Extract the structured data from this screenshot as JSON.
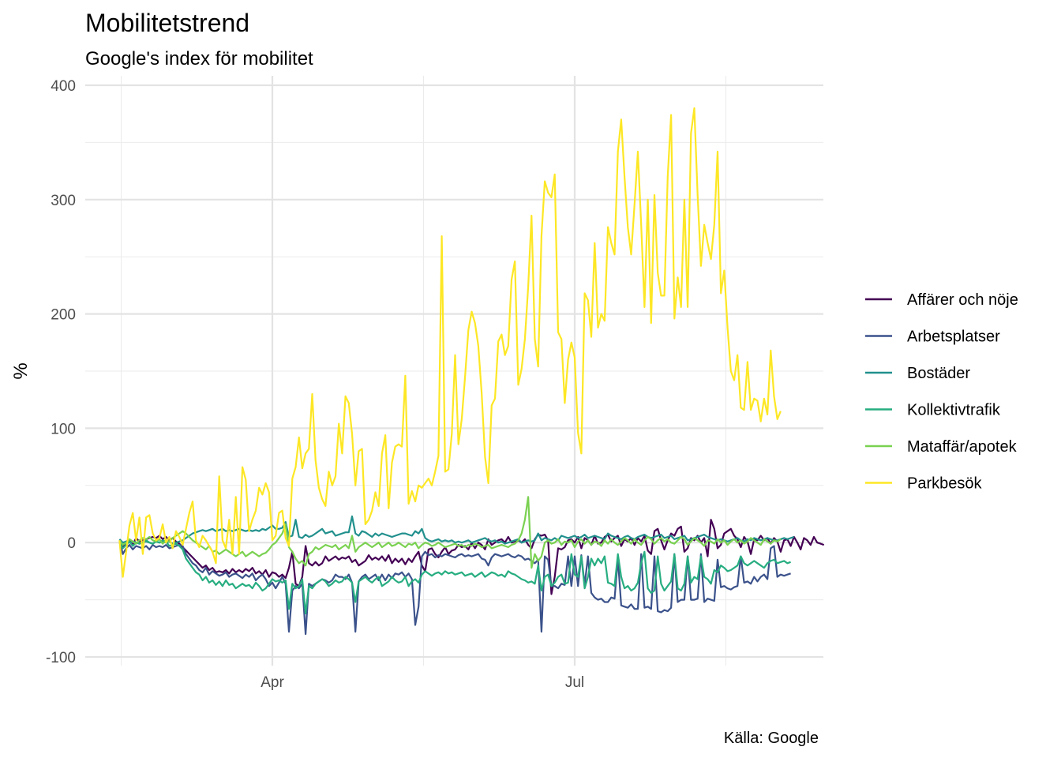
{
  "chart_data": {
    "type": "line",
    "title": "Mobilitetstrend",
    "subtitle": "Google's index för mobilitet",
    "xlabel": "",
    "ylabel": "%",
    "caption": "Källa: Google",
    "x_start": "2020-02-15",
    "x_ticks": [
      {
        "date": "2020-04-01",
        "label": "Apr"
      },
      {
        "date": "2020-07-01",
        "label": "Jul"
      }
    ],
    "y_ticks": [
      -100,
      0,
      100,
      200,
      300,
      400
    ],
    "ylim": [
      -100,
      400
    ],
    "grid": true,
    "legend_position": "right",
    "series": [
      {
        "name": "Affärer och nöje",
        "color": "#440154",
        "values": [
          0,
          -4,
          1,
          2,
          -2,
          4,
          1,
          2,
          3,
          4,
          5,
          4,
          6,
          3,
          5,
          2,
          4,
          1,
          -1,
          -4,
          -7,
          -10,
          -13,
          -16,
          -19,
          -22,
          -20,
          -24,
          -22,
          -26,
          -25,
          -26,
          -24,
          -27,
          -23,
          -26,
          -24,
          -26,
          -23,
          -25,
          -22,
          -27,
          -25,
          -28,
          -24,
          -30,
          -26,
          -27,
          -30,
          -28,
          -31,
          -22,
          -8,
          -36,
          -38,
          -30,
          -3,
          -18,
          -20,
          -17,
          -20,
          -18,
          -12,
          -16,
          -14,
          -12,
          -15,
          -13,
          -14,
          -12,
          -17,
          -15,
          -20,
          -18,
          -16,
          -11,
          -15,
          -13,
          -15,
          -12,
          -16,
          -11,
          -18,
          -14,
          -17,
          -14,
          -19,
          -14,
          -17,
          -12,
          -8,
          -20,
          -25,
          -6,
          -5,
          -10,
          -13,
          -8,
          -4,
          -10,
          -7,
          -6,
          -2,
          -4,
          -3,
          -6,
          0,
          -5,
          0,
          -2,
          -6,
          3,
          -2,
          0,
          2,
          3,
          0,
          5,
          0,
          1,
          2,
          0,
          3,
          -2,
          -5,
          3,
          7,
          6,
          7,
          2,
          -45,
          -30,
          -5,
          -6,
          -4,
          2,
          3,
          0,
          5,
          -5,
          4,
          2,
          -2,
          6,
          -1,
          0,
          5,
          7,
          1,
          4,
          6,
          -3,
          3,
          1,
          4,
          -2,
          4,
          1,
          6,
          -7,
          -10,
          10,
          12,
          2,
          -6,
          2,
          8,
          6,
          12,
          14,
          -8,
          -5,
          4,
          2,
          6,
          0,
          4,
          -12,
          20,
          12,
          -5,
          -2,
          8,
          10,
          12,
          6,
          3,
          -4,
          5,
          1,
          -10,
          3,
          2,
          6,
          2,
          4,
          -1,
          4,
          1,
          -8,
          2,
          3,
          -3,
          5,
          0,
          -6,
          4,
          2,
          -2,
          5,
          0,
          -1,
          -2
        ]
      },
      {
        "name": "Arbetsplatser",
        "color": "#3b528b",
        "values": [
          2,
          -10,
          -5,
          -2,
          -6,
          -3,
          -4,
          -5,
          -3,
          -6,
          -2,
          -4,
          -3,
          -4,
          -2,
          -5,
          -4,
          -3,
          -2,
          -3,
          -10,
          -14,
          -18,
          -20,
          -24,
          -26,
          -22,
          -28,
          -25,
          -27,
          -29,
          -28,
          -26,
          -30,
          -28,
          -27,
          -29,
          -31,
          -28,
          -30,
          -27,
          -33,
          -30,
          -28,
          -32,
          -38,
          -35,
          -40,
          -35,
          -30,
          -36,
          -78,
          -42,
          -38,
          -40,
          -36,
          -80,
          -36,
          -38,
          -36,
          -34,
          -32,
          -33,
          -35,
          -33,
          -28,
          -30,
          -30,
          -32,
          -28,
          -35,
          -78,
          -34,
          -30,
          -28,
          -32,
          -30,
          -28,
          -33,
          -28,
          -33,
          -28,
          -31,
          -27,
          -28,
          -26,
          -30,
          -27,
          -32,
          -72,
          -56,
          -12,
          -8,
          -11,
          -10,
          -13,
          -11,
          -12,
          -10,
          -11,
          -12,
          -13,
          -11,
          -10,
          -12,
          -11,
          -12,
          -11,
          -10,
          -14,
          -15,
          -20,
          -13,
          -10,
          -11,
          -12,
          -11,
          -10,
          -12,
          -13,
          -11,
          -12,
          -15,
          -14,
          -16,
          -18,
          -15,
          -78,
          -12,
          -15,
          -38,
          -38,
          -40,
          -36,
          -37,
          -12,
          -38,
          -12,
          -38,
          -11,
          -37,
          -12,
          -44,
          -48,
          -50,
          -49,
          -52,
          -52,
          -48,
          -49,
          -14,
          -55,
          -56,
          -57,
          -54,
          -58,
          -58,
          -10,
          -57,
          -56,
          -58,
          -12,
          -60,
          -61,
          -59,
          -60,
          -57,
          -10,
          -52,
          -50,
          -50,
          -12,
          -50,
          -50,
          -49,
          -10,
          -52,
          -49,
          -50,
          -51,
          -15,
          -39,
          -38,
          -40,
          -41,
          -39,
          -38,
          -12,
          -35,
          -34,
          -36,
          -30,
          -34,
          -30,
          -28,
          -32,
          -5,
          -3,
          -30,
          -28,
          -29,
          -28,
          -27
        ]
      },
      {
        "name": "Bostäder",
        "color": "#21908d",
        "values": [
          3,
          0,
          1,
          0,
          1,
          0,
          -1,
          0,
          1,
          0,
          -1,
          1,
          0,
          1,
          0,
          1,
          -1,
          0,
          1,
          2,
          4,
          6,
          8,
          9,
          10,
          11,
          10,
          11,
          12,
          10,
          11,
          12,
          10,
          11,
          10,
          11,
          12,
          11,
          10,
          11,
          10,
          11,
          10,
          12,
          11,
          13,
          15,
          12,
          12,
          13,
          18,
          5,
          6,
          20,
          5,
          4,
          7,
          5,
          6,
          8,
          10,
          12,
          8,
          9,
          10,
          6,
          7,
          8,
          9,
          9,
          23,
          8,
          6,
          10,
          9,
          7,
          5,
          8,
          6,
          8,
          7,
          6,
          5,
          6,
          7,
          8,
          8,
          7,
          6,
          10,
          8,
          12,
          4,
          2,
          1,
          2,
          3,
          1,
          2,
          1,
          2,
          0,
          1,
          0,
          1,
          2,
          0,
          1,
          2,
          3,
          4,
          2,
          1,
          2,
          0,
          1,
          -1,
          0,
          1,
          2,
          3,
          0,
          1,
          2,
          1,
          2,
          8,
          2,
          4,
          3,
          2,
          4,
          2,
          6,
          5,
          4,
          5,
          6,
          4,
          5,
          7,
          4,
          5,
          6,
          5,
          4,
          3,
          8,
          6,
          5,
          4,
          3,
          5,
          6,
          4,
          3,
          5,
          6,
          7,
          5,
          4,
          5,
          6,
          7,
          4,
          5,
          6,
          3,
          4,
          5,
          6,
          2,
          3,
          4,
          5,
          6,
          7,
          5,
          4,
          3,
          2,
          3,
          2,
          1,
          2,
          3,
          4,
          2,
          1,
          3,
          2,
          4,
          3,
          2,
          3,
          4,
          3,
          2,
          2,
          3,
          4,
          3,
          4,
          5
        ]
      },
      {
        "name": "Kollektivtrafik",
        "color": "#27ad81",
        "values": [
          0,
          -5,
          -2,
          1,
          -3,
          0,
          -1,
          0,
          2,
          0,
          -1,
          1,
          0,
          2,
          1,
          -3,
          -2,
          -1,
          -3,
          -6,
          -14,
          -18,
          -22,
          -26,
          -28,
          -33,
          -30,
          -35,
          -33,
          -37,
          -34,
          -38,
          -33,
          -37,
          -36,
          -40,
          -38,
          -36,
          -38,
          -37,
          -40,
          -35,
          -38,
          -42,
          -40,
          -36,
          -32,
          -34,
          -33,
          -35,
          -33,
          -58,
          -36,
          -40,
          -38,
          -32,
          -62,
          -38,
          -40,
          -36,
          -34,
          -32,
          -34,
          -38,
          -36,
          -33,
          -35,
          -34,
          -30,
          -32,
          -35,
          -52,
          -34,
          -32,
          -30,
          -33,
          -35,
          -32,
          -30,
          -38,
          -36,
          -34,
          -30,
          -33,
          -35,
          -34,
          -30,
          -38,
          -34,
          -32,
          -35,
          -28,
          -25,
          -27,
          -29,
          -27,
          -26,
          -28,
          -25,
          -27,
          -26,
          -28,
          -27,
          -26,
          -29,
          -28,
          -27,
          -30,
          -28,
          -26,
          -30,
          -28,
          -26,
          -27,
          -29,
          -28,
          -30,
          -25,
          -27,
          -28,
          -30,
          -32,
          -33,
          -35,
          -34,
          -36,
          -20,
          -42,
          -30,
          -28,
          -38,
          -35,
          -30,
          -28,
          -36,
          -35,
          -10,
          -28,
          -30,
          -12,
          -40,
          -30,
          -14,
          -20,
          -14,
          -18,
          -12,
          -35,
          -36,
          -38,
          -10,
          -30,
          -40,
          -38,
          -42,
          -40,
          -35,
          -18,
          -8,
          -40,
          -44,
          -42,
          -12,
          -36,
          -42,
          -38,
          -34,
          -10,
          -40,
          -42,
          -36,
          -12,
          -35,
          -30,
          -32,
          -12,
          -30,
          -32,
          -36,
          -24,
          -26,
          -20,
          -22,
          -25,
          -24,
          -22,
          -20,
          -12,
          -18,
          -20,
          -18,
          -16,
          -18,
          -20,
          -22,
          -18,
          -16,
          -15,
          -18,
          -17,
          -16,
          -18,
          -17
        ]
      },
      {
        "name": "Mataffär/apotek",
        "color": "#7ad151",
        "values": [
          2,
          -2,
          0,
          3,
          1,
          -1,
          2,
          4,
          3,
          5,
          2,
          1,
          3,
          -1,
          2,
          1,
          4,
          6,
          8,
          10,
          8,
          5,
          2,
          0,
          -2,
          -4,
          -6,
          -3,
          -8,
          -7,
          -10,
          -8,
          -6,
          -8,
          -10,
          -12,
          -10,
          -8,
          -12,
          -10,
          -8,
          -10,
          -12,
          -10,
          -9,
          -6,
          -2,
          0,
          4,
          8,
          16,
          -4,
          -8,
          -14,
          -18,
          -16,
          -20,
          -10,
          -8,
          -4,
          -6,
          -4,
          -2,
          -3,
          -4,
          -2,
          -6,
          -4,
          -2,
          -5,
          6,
          -8,
          -4,
          -2,
          0,
          -2,
          -4,
          -2,
          0,
          -4,
          -2,
          0,
          -3,
          -2,
          0,
          -2,
          -4,
          -1,
          -2,
          0,
          -5,
          -2,
          0,
          -1,
          -3,
          -2,
          0,
          -2,
          -4,
          -3,
          -2,
          -1,
          -3,
          -2,
          -4,
          -2,
          -3,
          -1,
          -2,
          -4,
          -3,
          -2,
          -5,
          -4,
          -3,
          -2,
          -3,
          -4,
          -2,
          -1,
          2,
          8,
          20,
          40,
          -22,
          -10,
          -16,
          -12,
          0,
          2,
          -1,
          0,
          3,
          -2,
          1,
          0,
          2,
          -4,
          1,
          3,
          -1,
          2,
          -2,
          1,
          0,
          -3,
          2,
          -1,
          3,
          0,
          -2,
          1,
          4,
          2,
          -1,
          3,
          0,
          -2,
          2,
          5,
          3,
          -1,
          2,
          4,
          1,
          3,
          0,
          -1,
          2,
          5,
          3,
          -2,
          1,
          4,
          2,
          0,
          -3,
          2,
          1,
          -1,
          3,
          0,
          2,
          -2,
          1,
          3,
          0,
          2,
          -1,
          1,
          4,
          2,
          0,
          -2,
          3,
          1,
          -1,
          2,
          1,
          3
        ]
      },
      {
        "name": "Parkbesök",
        "color": "#fde725",
        "values": [
          2,
          -30,
          -8,
          15,
          26,
          2,
          22,
          -10,
          22,
          24,
          8,
          2,
          4,
          16,
          0,
          5,
          -5,
          10,
          5,
          -2,
          12,
          26,
          36,
          2,
          -4,
          6,
          2,
          -3,
          -8,
          -18,
          58,
          2,
          -5,
          20,
          -10,
          40,
          -10,
          66,
          55,
          10,
          20,
          28,
          48,
          42,
          52,
          44,
          2,
          6,
          26,
          28,
          4,
          -3,
          56,
          66,
          92,
          65,
          78,
          82,
          130,
          72,
          48,
          38,
          32,
          62,
          50,
          58,
          104,
          78,
          128,
          122,
          95,
          50,
          80,
          82,
          16,
          20,
          28,
          44,
          32,
          78,
          94,
          30,
          70,
          84,
          86,
          84,
          146,
          34,
          45,
          36,
          50,
          48,
          52,
          56,
          50,
          62,
          76,
          268,
          62,
          64,
          95,
          164,
          86,
          108,
          145,
          186,
          202,
          192,
          172,
          130,
          75,
          52,
          120,
          126,
          176,
          182,
          164,
          172,
          230,
          246,
          138,
          152,
          178,
          224,
          286,
          178,
          154,
          268,
          316,
          306,
          302,
          322,
          184,
          178,
          122,
          160,
          175,
          162,
          96,
          78,
          218,
          212,
          180,
          262,
          188,
          200,
          194,
          276,
          262,
          252,
          342,
          370,
          320,
          276,
          252,
          296,
          342,
          278,
          206,
          300,
          192,
          304,
          236,
          216,
          216,
          320,
          374,
          196,
          232,
          206,
          300,
          206,
          358,
          380,
          304,
          242,
          278,
          262,
          248,
          278,
          342,
          218,
          238,
          188,
          150,
          142,
          164,
          118,
          116,
          158,
          116,
          126,
          124,
          106,
          126,
          112,
          168,
          128,
          108,
          115
        ]
      }
    ]
  }
}
